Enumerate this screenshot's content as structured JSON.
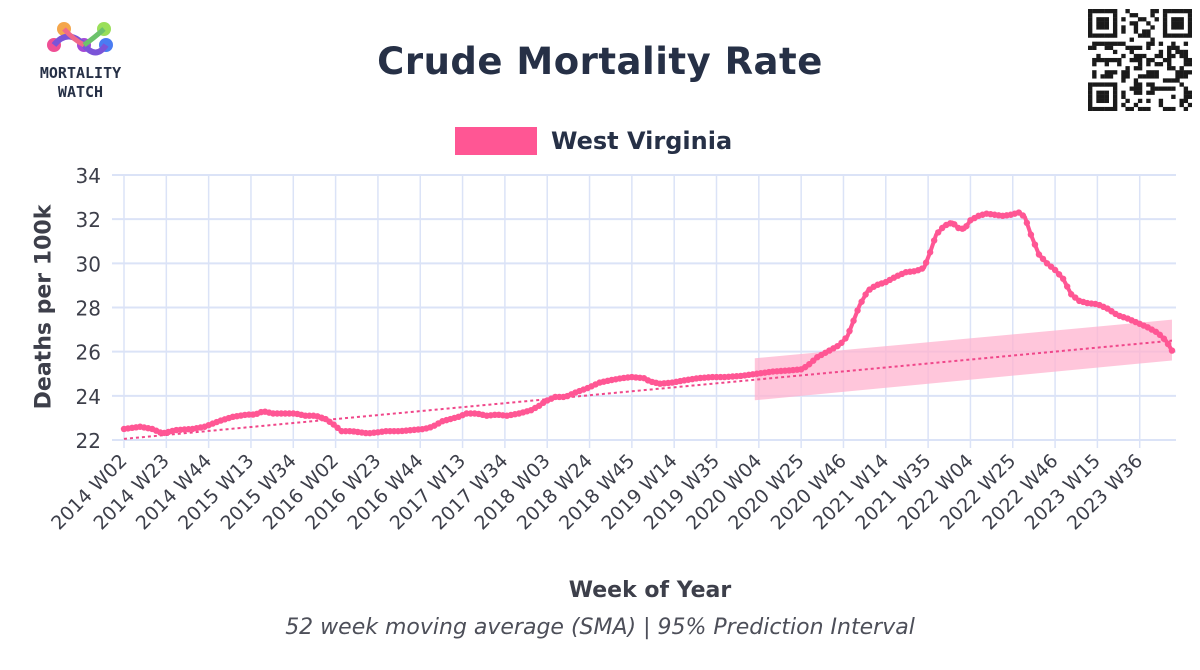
{
  "header": {
    "logo_line1": "MORTALITY",
    "logo_line2": "WATCH"
  },
  "colors": {
    "series": "#ff5694",
    "trend": "#f0478a",
    "band": "#ffb3cf",
    "grid": "#dbe3f7",
    "text": "#263046"
  },
  "chart_data": {
    "type": "line",
    "title": "Crude Mortality Rate",
    "subtitle": "52 week moving average (SMA) | 95% Prediction Interval",
    "xlabel": "Week of Year",
    "ylabel": "Deaths per 100k",
    "ylim": [
      22,
      34
    ],
    "yticks": [
      22,
      24,
      26,
      28,
      30,
      32,
      34
    ],
    "grid": true,
    "legend_position": "top-center",
    "x_tick_labels": [
      "2014 W02",
      "2014 W23",
      "2014 W44",
      "2015 W13",
      "2015 W34",
      "2016 W02",
      "2016 W23",
      "2016 W44",
      "2017 W13",
      "2017 W34",
      "2018 W03",
      "2018 W24",
      "2018 W45",
      "2019 W14",
      "2019 W35",
      "2020 W04",
      "2020 W25",
      "2020 W46",
      "2021 W14",
      "2021 W35",
      "2022 W04",
      "2022 W25",
      "2022 W46",
      "2023 W15",
      "2023 W36"
    ],
    "x_tick_week_index": [
      0,
      21,
      42,
      63,
      84,
      105,
      126,
      147,
      168,
      189,
      210,
      231,
      252,
      273,
      294,
      315,
      336,
      357,
      378,
      399,
      420,
      441,
      462,
      483,
      504
    ],
    "x_range_weeks": [
      0,
      522
    ],
    "series": [
      {
        "name": "West Virginia",
        "points": [
          [
            0,
            22.5
          ],
          [
            8,
            22.6
          ],
          [
            14,
            22.5
          ],
          [
            19,
            22.3
          ],
          [
            26,
            22.45
          ],
          [
            34,
            22.5
          ],
          [
            40,
            22.6
          ],
          [
            47,
            22.85
          ],
          [
            54,
            23.05
          ],
          [
            61,
            23.15
          ],
          [
            65,
            23.15
          ],
          [
            69,
            23.3
          ],
          [
            74,
            23.2
          ],
          [
            79,
            23.2
          ],
          [
            85,
            23.2
          ],
          [
            90,
            23.1
          ],
          [
            95,
            23.1
          ],
          [
            100,
            22.95
          ],
          [
            104,
            22.7
          ],
          [
            108,
            22.4
          ],
          [
            113,
            22.4
          ],
          [
            117,
            22.35
          ],
          [
            121,
            22.3
          ],
          [
            126,
            22.35
          ],
          [
            130,
            22.4
          ],
          [
            137,
            22.4
          ],
          [
            143,
            22.45
          ],
          [
            149,
            22.5
          ],
          [
            153,
            22.6
          ],
          [
            158,
            22.85
          ],
          [
            162,
            22.95
          ],
          [
            166,
            23.05
          ],
          [
            170,
            23.2
          ],
          [
            175,
            23.2
          ],
          [
            180,
            23.1
          ],
          [
            185,
            23.15
          ],
          [
            190,
            23.1
          ],
          [
            196,
            23.2
          ],
          [
            202,
            23.35
          ],
          [
            206,
            23.55
          ],
          [
            209,
            23.75
          ],
          [
            214,
            23.95
          ],
          [
            219,
            23.95
          ],
          [
            224,
            24.15
          ],
          [
            230,
            24.35
          ],
          [
            236,
            24.6
          ],
          [
            241,
            24.7
          ],
          [
            247,
            24.8
          ],
          [
            252,
            24.85
          ],
          [
            258,
            24.8
          ],
          [
            261,
            24.65
          ],
          [
            266,
            24.55
          ],
          [
            272,
            24.6
          ],
          [
            278,
            24.7
          ],
          [
            285,
            24.8
          ],
          [
            292,
            24.85
          ],
          [
            298,
            24.85
          ],
          [
            306,
            24.9
          ],
          [
            314,
            25.0
          ],
          [
            322,
            25.1
          ],
          [
            330,
            25.15
          ],
          [
            336,
            25.2
          ],
          [
            339,
            25.35
          ],
          [
            344,
            25.75
          ],
          [
            349,
            26.0
          ],
          [
            355,
            26.3
          ],
          [
            359,
            26.7
          ],
          [
            362,
            27.4
          ],
          [
            365,
            28.1
          ],
          [
            369,
            28.75
          ],
          [
            373,
            29.0
          ],
          [
            378,
            29.15
          ],
          [
            383,
            29.4
          ],
          [
            388,
            29.6
          ],
          [
            393,
            29.65
          ],
          [
            397,
            29.8
          ],
          [
            400,
            30.5
          ],
          [
            403,
            31.3
          ],
          [
            407,
            31.7
          ],
          [
            411,
            31.85
          ],
          [
            414,
            31.6
          ],
          [
            417,
            31.55
          ],
          [
            420,
            31.95
          ],
          [
            424,
            32.15
          ],
          [
            428,
            32.25
          ],
          [
            432,
            32.2
          ],
          [
            436,
            32.15
          ],
          [
            440,
            32.2
          ],
          [
            444,
            32.3
          ],
          [
            447,
            32.1
          ],
          [
            450,
            31.3
          ],
          [
            454,
            30.4
          ],
          [
            458,
            30.0
          ],
          [
            462,
            29.7
          ],
          [
            466,
            29.3
          ],
          [
            470,
            28.6
          ],
          [
            474,
            28.3
          ],
          [
            478,
            28.2
          ],
          [
            483,
            28.15
          ],
          [
            488,
            27.95
          ],
          [
            493,
            27.65
          ],
          [
            498,
            27.5
          ],
          [
            503,
            27.3
          ],
          [
            508,
            27.1
          ],
          [
            513,
            26.85
          ],
          [
            517,
            26.5
          ],
          [
            520,
            26.05
          ]
        ]
      }
    ],
    "trend": {
      "start": [
        0,
        22.05
      ],
      "end": [
        520,
        26.5
      ]
    },
    "prediction_interval": {
      "start_week": 313,
      "end_week": 520,
      "lower": [
        23.8,
        25.6
      ],
      "upper": [
        25.7,
        27.45
      ]
    }
  }
}
